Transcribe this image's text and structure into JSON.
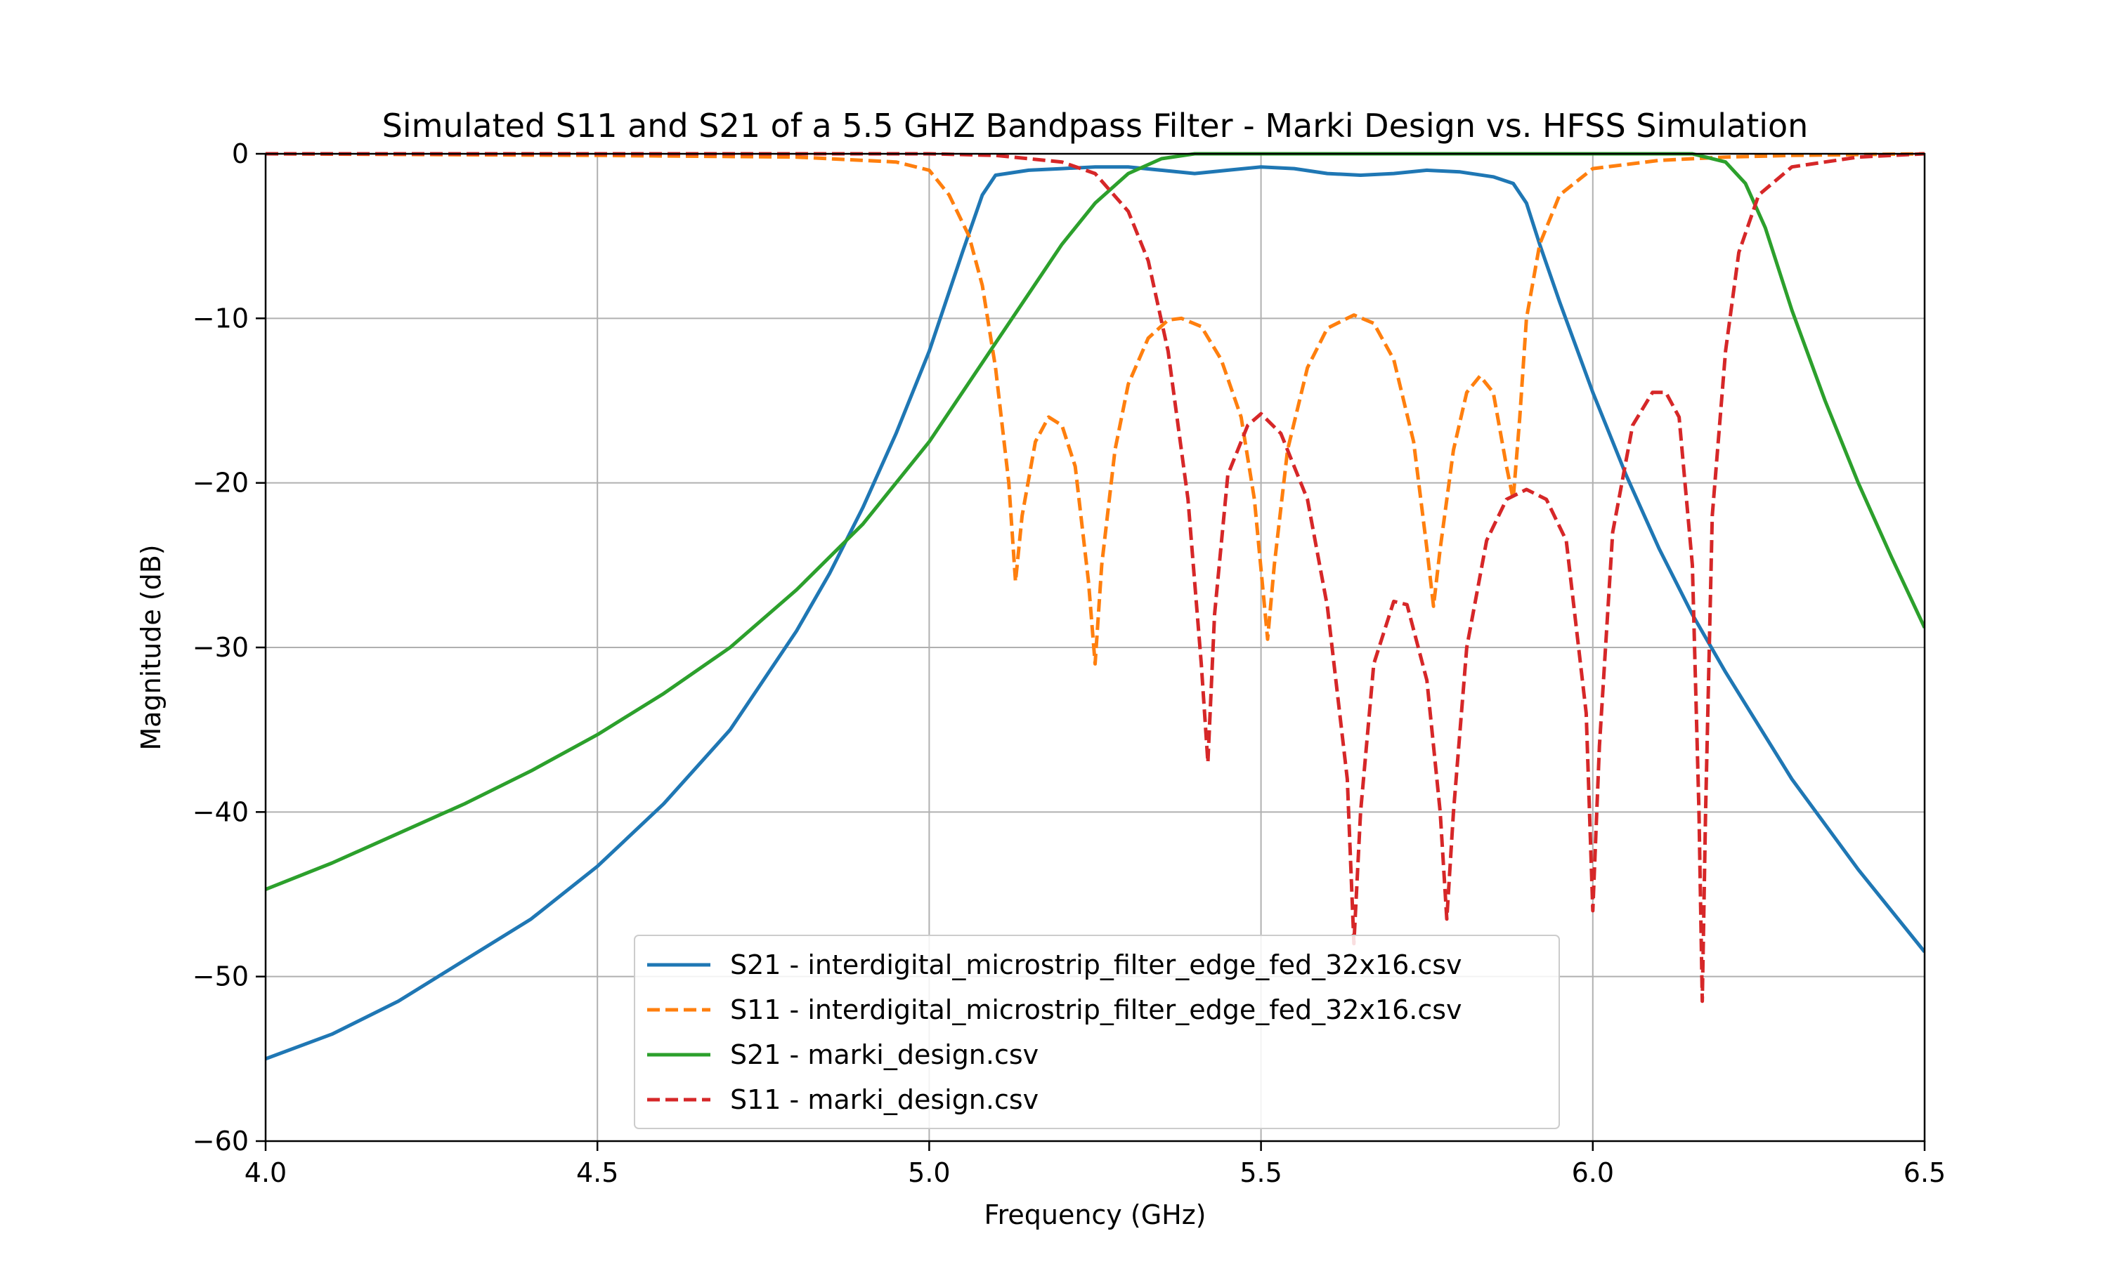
{
  "chart_data": {
    "type": "line",
    "title": "Simulated S11 and S21 of a 5.5 GHZ Bandpass Filter - Marki Design vs. HFSS Simulation",
    "xlabel": "Frequency (GHz)",
    "ylabel": "Magnitude (dB)",
    "xlim": [
      4.0,
      6.5
    ],
    "ylim": [
      -60,
      0
    ],
    "grid": true,
    "legend_position": "bottom-center",
    "x_ticks": [
      4.0,
      4.5,
      5.0,
      5.5,
      6.0,
      6.5
    ],
    "x_tick_labels": [
      "4.0",
      "4.5",
      "5.0",
      "5.5",
      "6.0",
      "6.5"
    ],
    "y_ticks": [
      0,
      -10,
      -20,
      -30,
      -40,
      -50,
      -60
    ],
    "y_tick_labels": [
      "0",
      "−10",
      "−20",
      "−30",
      "−40",
      "−50",
      "−60"
    ],
    "series": [
      {
        "name": "S21 - interdigital_microstrip_filter_edge_fed_32x16.csv",
        "color": "#1f77b4",
        "dash": "solid",
        "points": [
          [
            4.0,
            -55
          ],
          [
            4.1,
            -53.5
          ],
          [
            4.2,
            -51.5
          ],
          [
            4.3,
            -49
          ],
          [
            4.4,
            -46.5
          ],
          [
            4.5,
            -43.3
          ],
          [
            4.6,
            -39.5
          ],
          [
            4.7,
            -35
          ],
          [
            4.8,
            -29
          ],
          [
            4.85,
            -25.5
          ],
          [
            4.9,
            -21.5
          ],
          [
            4.95,
            -17
          ],
          [
            5.0,
            -12
          ],
          [
            5.05,
            -6
          ],
          [
            5.08,
            -2.5
          ],
          [
            5.1,
            -1.3
          ],
          [
            5.15,
            -1.0
          ],
          [
            5.2,
            -0.9
          ],
          [
            5.25,
            -0.8
          ],
          [
            5.3,
            -0.8
          ],
          [
            5.35,
            -1.0
          ],
          [
            5.4,
            -1.2
          ],
          [
            5.45,
            -1.0
          ],
          [
            5.5,
            -0.8
          ],
          [
            5.55,
            -0.9
          ],
          [
            5.6,
            -1.2
          ],
          [
            5.65,
            -1.3
          ],
          [
            5.7,
            -1.2
          ],
          [
            5.75,
            -1.0
          ],
          [
            5.8,
            -1.1
          ],
          [
            5.85,
            -1.4
          ],
          [
            5.88,
            -1.8
          ],
          [
            5.9,
            -3
          ],
          [
            5.92,
            -5.5
          ],
          [
            5.95,
            -9
          ],
          [
            6.0,
            -14.5
          ],
          [
            6.05,
            -19.5
          ],
          [
            6.1,
            -24
          ],
          [
            6.15,
            -28
          ],
          [
            6.2,
            -31.5
          ],
          [
            6.3,
            -38
          ],
          [
            6.4,
            -43.5
          ],
          [
            6.5,
            -48.5
          ]
        ]
      },
      {
        "name": "S11 - interdigital_microstrip_filter_edge_fed_32x16.csv",
        "color": "#ff7f0e",
        "dash": "dashed",
        "points": [
          [
            4.0,
            0
          ],
          [
            4.5,
            -0.1
          ],
          [
            4.8,
            -0.2
          ],
          [
            4.95,
            -0.5
          ],
          [
            5.0,
            -1.0
          ],
          [
            5.03,
            -2.5
          ],
          [
            5.06,
            -5
          ],
          [
            5.08,
            -8
          ],
          [
            5.1,
            -13
          ],
          [
            5.12,
            -20
          ],
          [
            5.13,
            -26
          ],
          [
            5.14,
            -22
          ],
          [
            5.16,
            -17.5
          ],
          [
            5.18,
            -16
          ],
          [
            5.2,
            -16.5
          ],
          [
            5.22,
            -19
          ],
          [
            5.24,
            -26
          ],
          [
            5.25,
            -31
          ],
          [
            5.26,
            -25
          ],
          [
            5.28,
            -18
          ],
          [
            5.3,
            -14
          ],
          [
            5.33,
            -11.2
          ],
          [
            5.36,
            -10.1
          ],
          [
            5.38,
            -10
          ],
          [
            5.41,
            -10.5
          ],
          [
            5.44,
            -12.5
          ],
          [
            5.47,
            -16
          ],
          [
            5.49,
            -21
          ],
          [
            5.51,
            -29.5
          ],
          [
            5.52,
            -25
          ],
          [
            5.54,
            -18
          ],
          [
            5.57,
            -13
          ],
          [
            5.6,
            -10.6
          ],
          [
            5.64,
            -9.8
          ],
          [
            5.67,
            -10.3
          ],
          [
            5.7,
            -12.5
          ],
          [
            5.73,
            -17.5
          ],
          [
            5.75,
            -24
          ],
          [
            5.76,
            -27.5
          ],
          [
            5.77,
            -24
          ],
          [
            5.79,
            -18
          ],
          [
            5.81,
            -14.5
          ],
          [
            5.83,
            -13.5
          ],
          [
            5.85,
            -14.5
          ],
          [
            5.87,
            -19
          ],
          [
            5.88,
            -21
          ],
          [
            5.89,
            -16
          ],
          [
            5.9,
            -10
          ],
          [
            5.92,
            -5.5
          ],
          [
            5.95,
            -2.5
          ],
          [
            6.0,
            -0.9
          ],
          [
            6.1,
            -0.4
          ],
          [
            6.2,
            -0.2
          ],
          [
            6.3,
            -0.1
          ],
          [
            6.5,
            0
          ]
        ]
      },
      {
        "name": "S21 - marki_design.csv",
        "color": "#2ca02c",
        "dash": "solid",
        "points": [
          [
            4.0,
            -44.7
          ],
          [
            4.1,
            -43.1
          ],
          [
            4.2,
            -41.3
          ],
          [
            4.3,
            -39.5
          ],
          [
            4.4,
            -37.5
          ],
          [
            4.5,
            -35.3
          ],
          [
            4.6,
            -32.8
          ],
          [
            4.7,
            -30
          ],
          [
            4.8,
            -26.5
          ],
          [
            4.9,
            -22.5
          ],
          [
            5.0,
            -17.5
          ],
          [
            5.05,
            -14.5
          ],
          [
            5.1,
            -11.5
          ],
          [
            5.15,
            -8.5
          ],
          [
            5.2,
            -5.5
          ],
          [
            5.25,
            -3
          ],
          [
            5.3,
            -1.2
          ],
          [
            5.35,
            -0.3
          ],
          [
            5.4,
            0
          ],
          [
            5.5,
            0
          ],
          [
            6.0,
            0
          ],
          [
            6.15,
            0
          ],
          [
            6.2,
            -0.5
          ],
          [
            6.23,
            -1.8
          ],
          [
            6.26,
            -4.5
          ],
          [
            6.3,
            -9.5
          ],
          [
            6.35,
            -15
          ],
          [
            6.4,
            -20
          ],
          [
            6.45,
            -24.5
          ],
          [
            6.5,
            -28.8
          ]
        ]
      },
      {
        "name": "S11 - marki_design.csv",
        "color": "#d62728",
        "dash": "dashed",
        "points": [
          [
            4.0,
            0
          ],
          [
            5.0,
            0
          ],
          [
            5.1,
            -0.1
          ],
          [
            5.2,
            -0.5
          ],
          [
            5.25,
            -1.2
          ],
          [
            5.3,
            -3.5
          ],
          [
            5.33,
            -6.5
          ],
          [
            5.36,
            -12
          ],
          [
            5.39,
            -21
          ],
          [
            5.41,
            -31
          ],
          [
            5.42,
            -37
          ],
          [
            5.43,
            -28
          ],
          [
            5.45,
            -19.5
          ],
          [
            5.48,
            -16.5
          ],
          [
            5.5,
            -15.8
          ],
          [
            5.53,
            -17
          ],
          [
            5.57,
            -21
          ],
          [
            5.6,
            -27.5
          ],
          [
            5.63,
            -38
          ],
          [
            5.64,
            -48
          ],
          [
            5.65,
            -40
          ],
          [
            5.67,
            -31
          ],
          [
            5.7,
            -27.2
          ],
          [
            5.72,
            -27.4
          ],
          [
            5.75,
            -32
          ],
          [
            5.77,
            -40
          ],
          [
            5.78,
            -46.5
          ],
          [
            5.79,
            -40
          ],
          [
            5.81,
            -30
          ],
          [
            5.84,
            -23.5
          ],
          [
            5.87,
            -21
          ],
          [
            5.9,
            -20.4
          ],
          [
            5.93,
            -21
          ],
          [
            5.96,
            -23.5
          ],
          [
            5.99,
            -34
          ],
          [
            6.0,
            -46
          ],
          [
            6.01,
            -36
          ],
          [
            6.03,
            -23
          ],
          [
            6.06,
            -16.5
          ],
          [
            6.09,
            -14.5
          ],
          [
            6.11,
            -14.5
          ],
          [
            6.13,
            -16
          ],
          [
            6.15,
            -25
          ],
          [
            6.16,
            -40
          ],
          [
            6.165,
            -51.5
          ],
          [
            6.17,
            -40
          ],
          [
            6.18,
            -22
          ],
          [
            6.2,
            -12
          ],
          [
            6.22,
            -6
          ],
          [
            6.25,
            -2.5
          ],
          [
            6.3,
            -0.8
          ],
          [
            6.4,
            -0.2
          ],
          [
            6.5,
            0
          ]
        ]
      }
    ]
  }
}
